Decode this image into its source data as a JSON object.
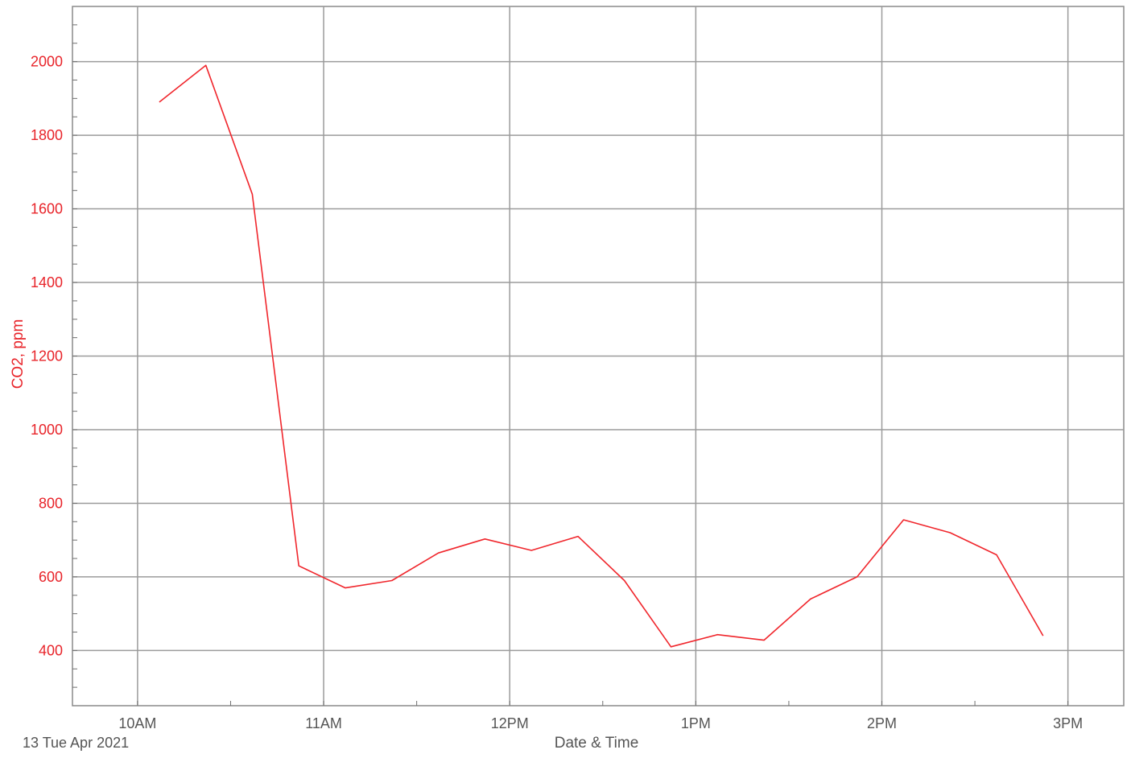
{
  "chart_data": {
    "type": "line",
    "title": "",
    "xlabel": "Date & Time",
    "ylabel": "CO2, ppm",
    "date_label": "13 Tue Apr 2021",
    "x_tick_labels": [
      "10AM",
      "11AM",
      "12PM",
      "1PM",
      "2PM",
      "3PM"
    ],
    "y_ticks": [
      400,
      600,
      800,
      1000,
      1200,
      1400,
      1600,
      1800,
      2000
    ],
    "ylim": [
      250,
      2150
    ],
    "xlim": [
      "2021-04-13 09:39",
      "2021-04-13 15:18"
    ],
    "grid": true,
    "colors": {
      "series": "#f0262c",
      "axis_label": "#e8242a",
      "grid": "#9b9b9b"
    },
    "series": [
      {
        "x": [
          "2021-04-13 10:07",
          "2021-04-13 10:22",
          "2021-04-13 10:37",
          "2021-04-13 10:52",
          "2021-04-13 11:07",
          "2021-04-13 11:22",
          "2021-04-13 11:37",
          "2021-04-13 11:52",
          "2021-04-13 12:07",
          "2021-04-13 12:22",
          "2021-04-13 12:37",
          "2021-04-13 12:52",
          "2021-04-13 13:07",
          "2021-04-13 13:22",
          "2021-04-13 13:37",
          "2021-04-13 13:52",
          "2021-04-13 14:07",
          "2021-04-13 14:22",
          "2021-04-13 14:37",
          "2021-04-13 14:52"
        ],
        "values": [
          1890,
          1990,
          1640,
          630,
          570,
          590,
          665,
          703,
          672,
          710,
          590,
          410,
          443,
          428,
          540,
          600,
          755,
          720,
          660,
          440
        ]
      }
    ]
  }
}
